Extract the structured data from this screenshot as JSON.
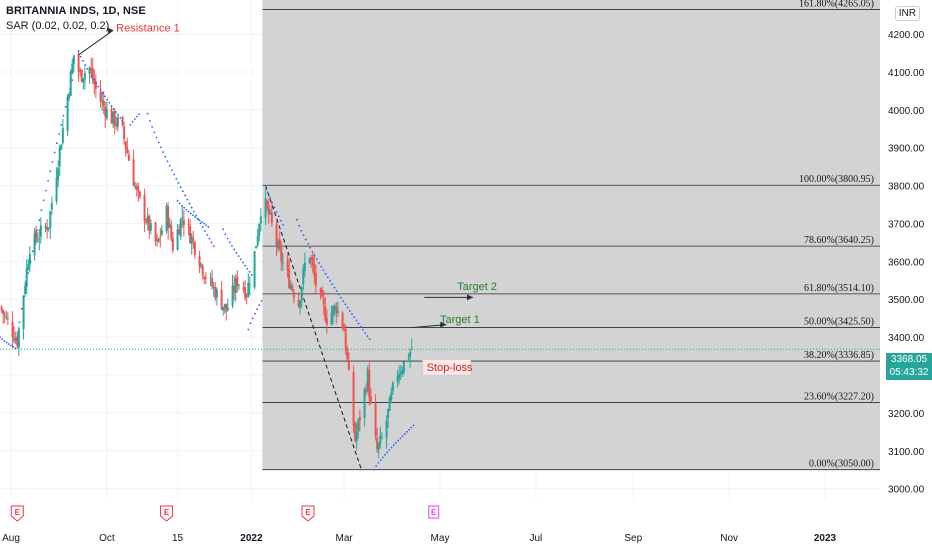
{
  "header": {
    "title": "BRITANNIA INDS, 1D, NSE",
    "indicator": "SAR (0.02, 0.02, 0.2)",
    "currency": "INR"
  },
  "last_price": {
    "value": "3368.05",
    "countdown": "05:43:32"
  },
  "colors": {
    "up": "#26a69a",
    "down": "#ef5350",
    "sar": "#2962ff",
    "fib_fill": "#d1d1d1",
    "resistance": "#e53935",
    "target": "#2e7d32",
    "stoploss": "#c62828",
    "earnings": "#f23645",
    "earnings_future": "#e040fb"
  },
  "annotations": {
    "resistance": "Resistance 1",
    "target1": "Target 1",
    "target2": "Target 2",
    "stoploss": "Stop-loss"
  },
  "events": {
    "earnings_marker": "E",
    "past_dates": [
      "2021-08-05",
      "2021-11-08",
      "2022-02-06"
    ],
    "upcoming_dates": [
      "2022-04-27"
    ]
  },
  "chart_data": {
    "type": "candlestick",
    "symbol": "BRITANNIA INDS",
    "timeframe": "1D",
    "exchange": "NSE",
    "yaxis_ticks": [
      3000,
      3100,
      3200,
      3300,
      3400,
      3500,
      3600,
      3700,
      3800,
      3900,
      4000,
      4100,
      4200
    ],
    "yaxis_tick_labels": [
      "3000.00",
      "3100.00",
      "3200.00",
      "3300.00",
      "3400.00",
      "3500.00",
      "3600.00",
      "3700.00",
      "3800.00",
      "3900.00",
      "4000.00",
      "4100.00",
      "4200.00"
    ],
    "xaxis_ticks": [
      {
        "label": "Aug",
        "date": "2021-08-01",
        "bold": false
      },
      {
        "label": "Oct",
        "date": "2021-10-01",
        "bold": false
      },
      {
        "label": "15",
        "date": "2021-11-15",
        "bold": false
      },
      {
        "label": "2022",
        "date": "2022-01-01",
        "bold": true
      },
      {
        "label": "Mar",
        "date": "2022-03-01",
        "bold": false
      },
      {
        "label": "May",
        "date": "2022-05-01",
        "bold": false
      },
      {
        "label": "Jul",
        "date": "2022-07-01",
        "bold": false
      },
      {
        "label": "Sep",
        "date": "2022-09-01",
        "bold": false
      },
      {
        "label": "Nov",
        "date": "2022-11-01",
        "bold": false
      },
      {
        "label": "2023",
        "date": "2023-01-01",
        "bold": true
      }
    ],
    "x_range": [
      "2021-07-25",
      "2023-02-05"
    ],
    "y_range": [
      2970,
      4290
    ],
    "price_path": [
      [
        "2021-07-25",
        3480
      ],
      [
        "2021-08-05",
        3390
      ],
      [
        "2021-08-13",
        3640
      ],
      [
        "2021-08-25",
        3700
      ],
      [
        "2021-09-03",
        3950
      ],
      [
        "2021-09-10",
        4145
      ],
      [
        "2021-09-14",
        4090
      ],
      [
        "2021-09-20",
        4110
      ],
      [
        "2021-09-25",
        4040
      ],
      [
        "2021-10-03",
        3980
      ],
      [
        "2021-10-10",
        3960
      ],
      [
        "2021-10-20",
        3780
      ],
      [
        "2021-10-27",
        3700
      ],
      [
        "2021-11-02",
        3640
      ],
      [
        "2021-11-08",
        3730
      ],
      [
        "2021-11-12",
        3640
      ],
      [
        "2021-11-18",
        3720
      ],
      [
        "2021-11-25",
        3650
      ],
      [
        "2021-12-02",
        3570
      ],
      [
        "2021-12-09",
        3520
      ],
      [
        "2021-12-16",
        3470
      ],
      [
        "2021-12-23",
        3550
      ],
      [
        "2021-12-29",
        3520
      ],
      [
        "2022-01-02",
        3590
      ],
      [
        "2022-01-08",
        3770
      ],
      [
        "2022-01-13",
        3710
      ],
      [
        "2022-01-18",
        3630
      ],
      [
        "2022-01-24",
        3560
      ],
      [
        "2022-01-31",
        3490
      ],
      [
        "2022-02-06",
        3640
      ],
      [
        "2022-02-12",
        3520
      ],
      [
        "2022-02-18",
        3450
      ],
      [
        "2022-02-24",
        3480
      ],
      [
        "2022-03-01",
        3420
      ],
      [
        "2022-03-05",
        3250
      ],
      [
        "2022-03-08",
        3130
      ],
      [
        "2022-03-12",
        3210
      ],
      [
        "2022-03-16",
        3300
      ],
      [
        "2022-03-19",
        3170
      ],
      [
        "2022-03-22",
        3100
      ],
      [
        "2022-03-26",
        3140
      ],
      [
        "2022-03-30",
        3220
      ],
      [
        "2022-04-03",
        3300
      ],
      [
        "2022-04-08",
        3330
      ],
      [
        "2022-04-13",
        3370
      ]
    ],
    "sar_segments": [
      {
        "points": [
          [
            "2021-07-25",
            3400
          ],
          [
            "2021-08-04",
            3370
          ]
        ]
      },
      {
        "points": [
          [
            "2021-08-05",
            3395
          ],
          [
            "2021-09-10",
            4095
          ]
        ]
      },
      {
        "points": [
          [
            "2021-09-13",
            4155
          ],
          [
            "2021-10-12",
            3965
          ]
        ]
      },
      {
        "points": [
          [
            "2021-10-16",
            3960
          ],
          [
            "2021-10-22",
            3990
          ]
        ]
      },
      {
        "points": [
          [
            "2021-10-27",
            3990
          ],
          [
            "2021-12-08",
            3640
          ]
        ]
      },
      {
        "points": [
          [
            "2021-11-15",
            3760
          ],
          [
            "2021-12-05",
            3690
          ]
        ]
      },
      {
        "points": [
          [
            "2021-12-14",
            3685
          ],
          [
            "2022-01-02",
            3560
          ]
        ]
      },
      {
        "points": [
          [
            "2021-12-30",
            3420
          ],
          [
            "2022-01-08",
            3500
          ]
        ]
      },
      {
        "points": [
          [
            "2022-01-10",
            3800
          ],
          [
            "2022-01-22",
            3690
          ]
        ]
      },
      {
        "points": [
          [
            "2022-01-30",
            3710
          ],
          [
            "2022-03-18",
            3390
          ]
        ]
      },
      {
        "points": [
          [
            "2022-03-20",
            3050
          ],
          [
            "2022-04-15",
            3170
          ]
        ]
      }
    ],
    "fibonacci": {
      "start_date": "2022-01-08",
      "levels": [
        {
          "ratio": "0.00%",
          "price": 3050.0,
          "label": "0.00%(3050.00)"
        },
        {
          "ratio": "23.60%",
          "price": 3227.2,
          "label": "23.60%(3227.20)"
        },
        {
          "ratio": "38.20%",
          "price": 3336.85,
          "label": "38.20%(3336.85)"
        },
        {
          "ratio": "50.00%",
          "price": 3425.5,
          "label": "50.00%(3425.50)"
        },
        {
          "ratio": "61.80%",
          "price": 3514.1,
          "label": "61.80%(3514.10)"
        },
        {
          "ratio": "78.60%",
          "price": 3640.25,
          "label": "78.60%(3640.25)"
        },
        {
          "ratio": "100.00%",
          "price": 3800.95,
          "label": "100.00%(3800.95)"
        },
        {
          "ratio": "161.80%",
          "price": 4265.05,
          "label": "161.80%(4265.05)"
        }
      ]
    },
    "trend_line": [
      [
        "2022-01-10",
        3800
      ],
      [
        "2022-03-12",
        3050
      ]
    ],
    "last_close": 3368.05
  }
}
